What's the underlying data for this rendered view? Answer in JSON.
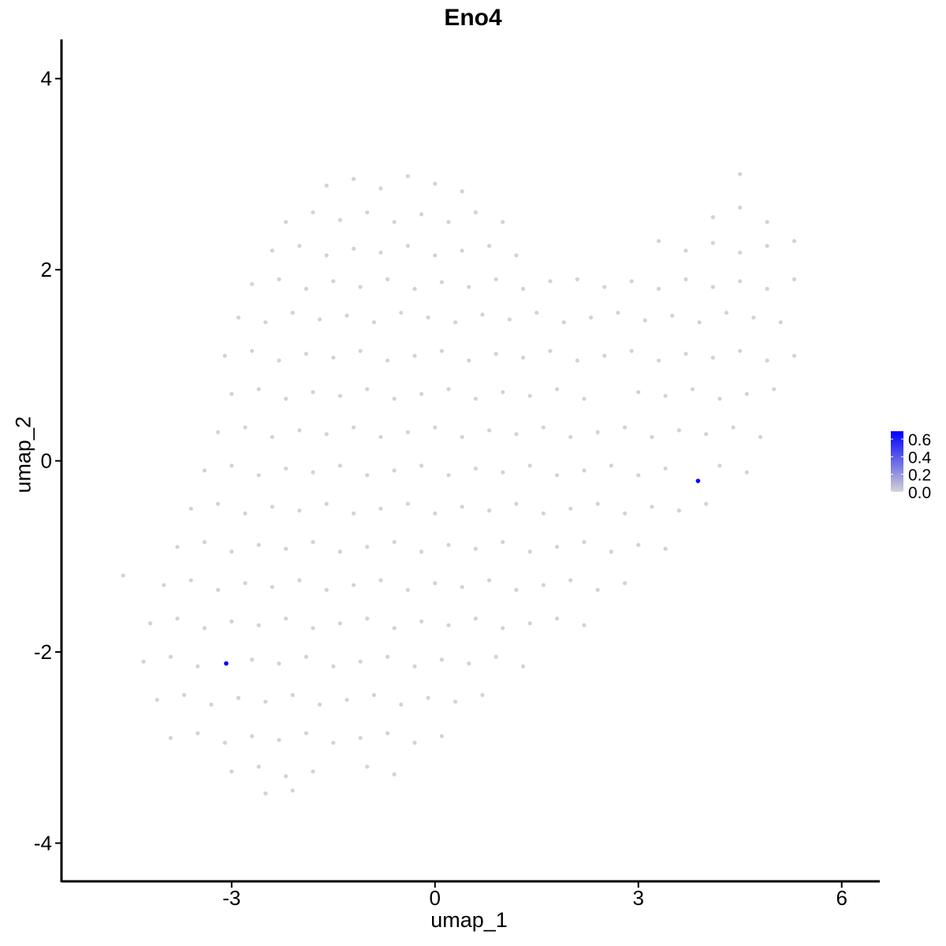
{
  "chart_data": {
    "type": "scatter",
    "title": "Eno4",
    "xlabel": "umap_1",
    "ylabel": "umap_2",
    "xlim": [
      -5.51,
      6.55
    ],
    "ylim": [
      -4.4,
      4.41
    ],
    "xticks": [
      "-3",
      "0",
      "3",
      "6"
    ],
    "yticks": [
      "-4",
      "-2",
      "0",
      "2",
      "4"
    ],
    "grid": false,
    "colors": {
      "low": "#d3d3d3",
      "high": "#0000ff"
    },
    "legend": {
      "placement": "right",
      "ticks": [
        "0.0",
        "0.2",
        "0.4",
        "0.6"
      ],
      "range": [
        0,
        0.69
      ]
    },
    "expressed_points": [
      {
        "x": -3.08,
        "y": -2.12,
        "value": 0.69
      },
      {
        "x": 3.88,
        "y": -0.21,
        "value": 0.69
      }
    ],
    "zero_points": [
      [
        -1.6,
        2.88
      ],
      [
        -1.2,
        2.95
      ],
      [
        -0.8,
        2.85
      ],
      [
        -0.4,
        2.98
      ],
      [
        0.0,
        2.9
      ],
      [
        0.4,
        2.82
      ],
      [
        4.5,
        3.0
      ],
      [
        -2.2,
        2.5
      ],
      [
        -1.8,
        2.6
      ],
      [
        -1.4,
        2.52
      ],
      [
        -1.0,
        2.6
      ],
      [
        -0.6,
        2.5
      ],
      [
        -0.2,
        2.58
      ],
      [
        0.2,
        2.5
      ],
      [
        0.6,
        2.6
      ],
      [
        1.0,
        2.5
      ],
      [
        4.1,
        2.55
      ],
      [
        4.5,
        2.65
      ],
      [
        4.9,
        2.5
      ],
      [
        -2.4,
        2.2
      ],
      [
        -2.0,
        2.25
      ],
      [
        -1.6,
        2.15
      ],
      [
        -1.2,
        2.22
      ],
      [
        -0.8,
        2.18
      ],
      [
        -0.4,
        2.25
      ],
      [
        0.0,
        2.15
      ],
      [
        0.4,
        2.2
      ],
      [
        0.8,
        2.25
      ],
      [
        1.2,
        2.15
      ],
      [
        3.3,
        2.3
      ],
      [
        3.7,
        2.2
      ],
      [
        4.1,
        2.28
      ],
      [
        4.5,
        2.18
      ],
      [
        4.9,
        2.25
      ],
      [
        5.3,
        2.3
      ],
      [
        -2.7,
        1.85
      ],
      [
        -2.3,
        1.9
      ],
      [
        -1.9,
        1.8
      ],
      [
        -1.5,
        1.88
      ],
      [
        -1.1,
        1.82
      ],
      [
        -0.7,
        1.9
      ],
      [
        -0.3,
        1.8
      ],
      [
        0.1,
        1.87
      ],
      [
        0.5,
        1.82
      ],
      [
        0.9,
        1.9
      ],
      [
        1.3,
        1.8
      ],
      [
        1.7,
        1.88
      ],
      [
        2.1,
        1.9
      ],
      [
        2.5,
        1.82
      ],
      [
        2.9,
        1.88
      ],
      [
        3.3,
        1.8
      ],
      [
        3.7,
        1.9
      ],
      [
        4.1,
        1.82
      ],
      [
        4.5,
        1.88
      ],
      [
        4.9,
        1.8
      ],
      [
        5.3,
        1.9
      ],
      [
        -2.9,
        1.5
      ],
      [
        -2.5,
        1.45
      ],
      [
        -2.1,
        1.55
      ],
      [
        -1.7,
        1.48
      ],
      [
        -1.3,
        1.52
      ],
      [
        -0.9,
        1.45
      ],
      [
        -0.5,
        1.55
      ],
      [
        -0.1,
        1.5
      ],
      [
        0.3,
        1.45
      ],
      [
        0.7,
        1.53
      ],
      [
        1.1,
        1.48
      ],
      [
        1.5,
        1.55
      ],
      [
        1.9,
        1.45
      ],
      [
        2.3,
        1.5
      ],
      [
        2.7,
        1.55
      ],
      [
        3.1,
        1.47
      ],
      [
        3.5,
        1.52
      ],
      [
        3.9,
        1.45
      ],
      [
        4.3,
        1.55
      ],
      [
        4.7,
        1.5
      ],
      [
        5.1,
        1.45
      ],
      [
        -3.1,
        1.1
      ],
      [
        -2.7,
        1.15
      ],
      [
        -2.3,
        1.05
      ],
      [
        -1.9,
        1.12
      ],
      [
        -1.5,
        1.08
      ],
      [
        -1.1,
        1.15
      ],
      [
        -0.7,
        1.05
      ],
      [
        -0.3,
        1.1
      ],
      [
        0.1,
        1.15
      ],
      [
        0.5,
        1.05
      ],
      [
        0.9,
        1.12
      ],
      [
        1.3,
        1.08
      ],
      [
        1.7,
        1.15
      ],
      [
        2.1,
        1.05
      ],
      [
        2.5,
        1.1
      ],
      [
        2.9,
        1.15
      ],
      [
        3.3,
        1.05
      ],
      [
        3.7,
        1.12
      ],
      [
        4.1,
        1.08
      ],
      [
        4.5,
        1.15
      ],
      [
        4.9,
        1.05
      ],
      [
        5.3,
        1.1
      ],
      [
        -3.0,
        0.7
      ],
      [
        -2.6,
        0.75
      ],
      [
        -2.2,
        0.65
      ],
      [
        -1.8,
        0.72
      ],
      [
        -1.4,
        0.68
      ],
      [
        -1.0,
        0.75
      ],
      [
        -0.6,
        0.65
      ],
      [
        -0.2,
        0.7
      ],
      [
        0.2,
        0.75
      ],
      [
        0.6,
        0.65
      ],
      [
        1.0,
        0.72
      ],
      [
        1.4,
        0.68
      ],
      [
        1.8,
        0.75
      ],
      [
        2.2,
        0.65
      ],
      [
        3.0,
        0.72
      ],
      [
        3.4,
        0.68
      ],
      [
        3.8,
        0.75
      ],
      [
        4.2,
        0.65
      ],
      [
        4.6,
        0.7
      ],
      [
        5.0,
        0.75
      ],
      [
        -3.2,
        0.3
      ],
      [
        -2.8,
        0.35
      ],
      [
        -2.4,
        0.25
      ],
      [
        -2.0,
        0.32
      ],
      [
        -1.6,
        0.28
      ],
      [
        -1.2,
        0.35
      ],
      [
        -0.8,
        0.25
      ],
      [
        -0.4,
        0.3
      ],
      [
        0.0,
        0.35
      ],
      [
        0.4,
        0.25
      ],
      [
        0.8,
        0.32
      ],
      [
        1.2,
        0.28
      ],
      [
        1.6,
        0.35
      ],
      [
        2.0,
        0.25
      ],
      [
        2.4,
        0.3
      ],
      [
        2.8,
        0.35
      ],
      [
        3.2,
        0.25
      ],
      [
        3.6,
        0.32
      ],
      [
        4.0,
        0.28
      ],
      [
        4.4,
        0.35
      ],
      [
        4.8,
        0.25
      ],
      [
        -3.4,
        -0.1
      ],
      [
        -3.0,
        -0.05
      ],
      [
        -2.6,
        -0.15
      ],
      [
        -2.2,
        -0.08
      ],
      [
        -1.8,
        -0.12
      ],
      [
        -1.4,
        -0.05
      ],
      [
        -1.0,
        -0.15
      ],
      [
        -0.6,
        -0.1
      ],
      [
        -0.2,
        -0.05
      ],
      [
        0.2,
        -0.15
      ],
      [
        0.6,
        -0.08
      ],
      [
        1.0,
        -0.12
      ],
      [
        1.4,
        -0.05
      ],
      [
        1.8,
        -0.15
      ],
      [
        2.2,
        -0.1
      ],
      [
        2.6,
        -0.05
      ],
      [
        3.0,
        -0.15
      ],
      [
        3.4,
        -0.08
      ],
      [
        4.2,
        -0.05
      ],
      [
        4.6,
        -0.12
      ],
      [
        -3.6,
        -0.5
      ],
      [
        -3.2,
        -0.45
      ],
      [
        -2.8,
        -0.55
      ],
      [
        -2.4,
        -0.48
      ],
      [
        -2.0,
        -0.52
      ],
      [
        -1.6,
        -0.45
      ],
      [
        -1.2,
        -0.55
      ],
      [
        -0.8,
        -0.5
      ],
      [
        -0.4,
        -0.45
      ],
      [
        0.0,
        -0.55
      ],
      [
        0.4,
        -0.48
      ],
      [
        0.8,
        -0.52
      ],
      [
        1.2,
        -0.45
      ],
      [
        1.6,
        -0.55
      ],
      [
        2.0,
        -0.5
      ],
      [
        2.4,
        -0.45
      ],
      [
        2.8,
        -0.55
      ],
      [
        3.2,
        -0.48
      ],
      [
        3.6,
        -0.52
      ],
      [
        4.0,
        -0.45
      ],
      [
        -3.8,
        -0.9
      ],
      [
        -3.4,
        -0.85
      ],
      [
        -3.0,
        -0.95
      ],
      [
        -2.6,
        -0.88
      ],
      [
        -2.2,
        -0.92
      ],
      [
        -1.8,
        -0.85
      ],
      [
        -1.4,
        -0.95
      ],
      [
        -1.0,
        -0.9
      ],
      [
        -0.6,
        -0.85
      ],
      [
        -0.2,
        -0.95
      ],
      [
        0.2,
        -0.88
      ],
      [
        0.6,
        -0.92
      ],
      [
        1.0,
        -0.85
      ],
      [
        1.4,
        -0.95
      ],
      [
        1.8,
        -0.9
      ],
      [
        2.2,
        -0.85
      ],
      [
        2.6,
        -0.95
      ],
      [
        3.0,
        -0.88
      ],
      [
        3.4,
        -0.92
      ],
      [
        -4.6,
        -1.2
      ],
      [
        -4.0,
        -1.3
      ],
      [
        -3.6,
        -1.25
      ],
      [
        -3.2,
        -1.35
      ],
      [
        -2.8,
        -1.28
      ],
      [
        -2.4,
        -1.32
      ],
      [
        -2.0,
        -1.25
      ],
      [
        -1.6,
        -1.35
      ],
      [
        -1.2,
        -1.3
      ],
      [
        -0.8,
        -1.25
      ],
      [
        -0.4,
        -1.35
      ],
      [
        0.0,
        -1.28
      ],
      [
        0.4,
        -1.32
      ],
      [
        0.8,
        -1.25
      ],
      [
        1.2,
        -1.35
      ],
      [
        1.6,
        -1.3
      ],
      [
        2.0,
        -1.25
      ],
      [
        2.4,
        -1.35
      ],
      [
        2.8,
        -1.28
      ],
      [
        -4.2,
        -1.7
      ],
      [
        -3.8,
        -1.65
      ],
      [
        -3.4,
        -1.75
      ],
      [
        -3.0,
        -1.68
      ],
      [
        -2.6,
        -1.72
      ],
      [
        -2.2,
        -1.65
      ],
      [
        -1.8,
        -1.75
      ],
      [
        -1.4,
        -1.7
      ],
      [
        -1.0,
        -1.65
      ],
      [
        -0.6,
        -1.75
      ],
      [
        -0.2,
        -1.68
      ],
      [
        0.2,
        -1.72
      ],
      [
        0.6,
        -1.65
      ],
      [
        1.0,
        -1.75
      ],
      [
        1.4,
        -1.7
      ],
      [
        1.8,
        -1.65
      ],
      [
        2.2,
        -1.72
      ],
      [
        -4.3,
        -2.1
      ],
      [
        -3.9,
        -2.05
      ],
      [
        -3.5,
        -2.15
      ],
      [
        -2.7,
        -2.08
      ],
      [
        -2.3,
        -2.12
      ],
      [
        -1.9,
        -2.05
      ],
      [
        -1.5,
        -2.15
      ],
      [
        -1.1,
        -2.1
      ],
      [
        -0.7,
        -2.05
      ],
      [
        -0.3,
        -2.15
      ],
      [
        0.1,
        -2.08
      ],
      [
        0.5,
        -2.12
      ],
      [
        0.9,
        -2.05
      ],
      [
        1.3,
        -2.15
      ],
      [
        -4.1,
        -2.5
      ],
      [
        -3.7,
        -2.45
      ],
      [
        -3.3,
        -2.55
      ],
      [
        -2.9,
        -2.48
      ],
      [
        -2.5,
        -2.52
      ],
      [
        -2.1,
        -2.45
      ],
      [
        -1.7,
        -2.55
      ],
      [
        -1.3,
        -2.5
      ],
      [
        -0.9,
        -2.45
      ],
      [
        -0.5,
        -2.55
      ],
      [
        -0.1,
        -2.48
      ],
      [
        0.3,
        -2.52
      ],
      [
        0.7,
        -2.45
      ],
      [
        -3.9,
        -2.9
      ],
      [
        -3.5,
        -2.85
      ],
      [
        -3.1,
        -2.95
      ],
      [
        -2.7,
        -2.88
      ],
      [
        -2.3,
        -2.92
      ],
      [
        -1.9,
        -2.85
      ],
      [
        -1.5,
        -2.95
      ],
      [
        -1.1,
        -2.9
      ],
      [
        -0.7,
        -2.85
      ],
      [
        -0.3,
        -2.95
      ],
      [
        0.1,
        -2.88
      ],
      [
        -3.0,
        -3.25
      ],
      [
        -2.6,
        -3.2
      ],
      [
        -2.2,
        -3.3
      ],
      [
        -1.8,
        -3.25
      ],
      [
        -1.0,
        -3.2
      ],
      [
        -0.6,
        -3.28
      ],
      [
        -2.5,
        -3.48
      ],
      [
        -2.1,
        -3.45
      ]
    ]
  }
}
